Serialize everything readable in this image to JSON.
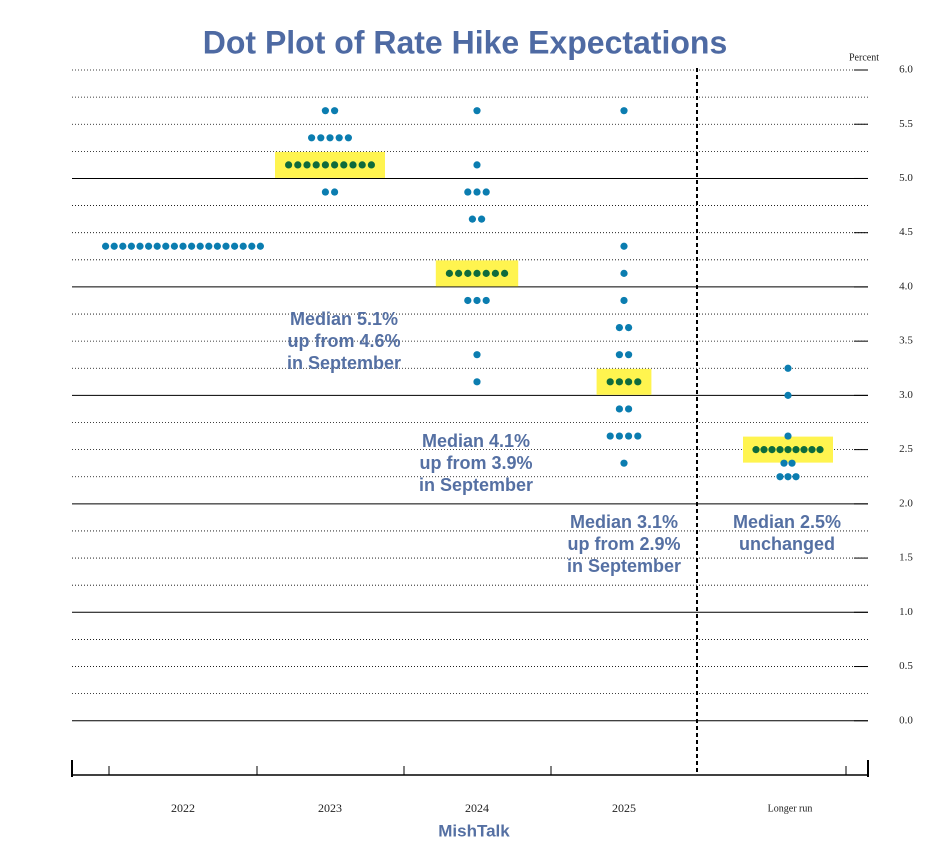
{
  "chart_data": {
    "type": "dotplot",
    "title": "Dot Plot of Rate Hike Expectations",
    "y_unit": "Percent",
    "footer": "MishTalk",
    "ylim": [
      -0.5,
      6.0
    ],
    "grid_step": 0.25,
    "yticks": [
      {
        "value": 0,
        "label": "0.0"
      },
      {
        "value": 0.5,
        "label": "0.5"
      },
      {
        "value": 1,
        "label": "1.0"
      },
      {
        "value": 1.5,
        "label": "1.5"
      },
      {
        "value": 2,
        "label": "2.0"
      },
      {
        "value": 2.5,
        "label": "2.5"
      },
      {
        "value": 3,
        "label": "3.0"
      },
      {
        "value": 3.5,
        "label": "3.5"
      },
      {
        "value": 4,
        "label": "4.0"
      },
      {
        "value": 4.5,
        "label": "4.5"
      },
      {
        "value": 5,
        "label": "5.0"
      },
      {
        "value": 5.5,
        "label": "5.5"
      },
      {
        "value": 6,
        "label": "6.0"
      }
    ],
    "dot_color": "#0b7db0",
    "median_dot_color": "#0e6b3c",
    "highlight_color": "#fff44f",
    "columns": [
      {
        "name": "2022",
        "values": [
          4.375,
          4.375,
          4.375,
          4.375,
          4.375,
          4.375,
          4.375,
          4.375,
          4.375,
          4.375,
          4.375,
          4.375,
          4.375,
          4.375,
          4.375,
          4.375,
          4.375,
          4.375,
          4.375
        ]
      },
      {
        "name": "2023",
        "median": 5.125,
        "values": [
          5.625,
          5.625,
          5.375,
          5.375,
          5.375,
          5.375,
          5.375,
          5.125,
          5.125,
          5.125,
          5.125,
          5.125,
          5.125,
          5.125,
          5.125,
          5.125,
          5.125,
          4.875,
          4.875
        ]
      },
      {
        "name": "2024",
        "median": 4.125,
        "values": [
          5.625,
          5.125,
          4.875,
          4.875,
          4.875,
          4.625,
          4.625,
          4.125,
          4.125,
          4.125,
          4.125,
          4.125,
          4.125,
          4.125,
          3.875,
          3.875,
          3.875,
          3.375,
          3.125
        ]
      },
      {
        "name": "2025",
        "median": 3.125,
        "values": [
          5.625,
          4.375,
          4.125,
          3.875,
          3.625,
          3.625,
          3.375,
          3.375,
          3.125,
          3.125,
          3.125,
          3.125,
          2.875,
          2.875,
          2.625,
          2.625,
          2.625,
          2.625,
          2.375
        ]
      },
      {
        "name": "Longer run",
        "median": 2.5,
        "values": [
          3.25,
          3.0,
          2.625,
          2.5,
          2.5,
          2.5,
          2.5,
          2.5,
          2.5,
          2.5,
          2.5,
          2.5,
          2.375,
          2.375,
          2.25,
          2.25,
          2.25
        ]
      }
    ],
    "annotations": [
      {
        "lines": [
          "Median 5.1%",
          "up from 4.6%",
          "in September"
        ]
      },
      {
        "lines": [
          "Median 4.1%",
          "up from 3.9%",
          "in September"
        ]
      },
      {
        "lines": [
          "Median 3.1%",
          "up from 2.9%",
          "in September"
        ]
      },
      {
        "lines": [
          "Median 2.5%",
          "unchanged"
        ]
      }
    ]
  }
}
